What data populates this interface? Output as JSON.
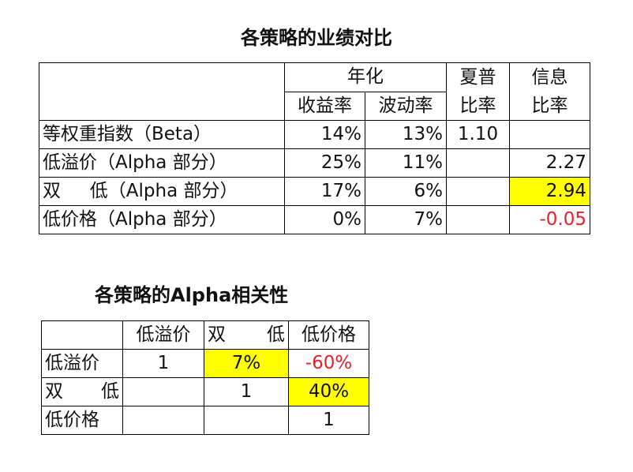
{
  "performance": {
    "title": "各策略的业绩对比",
    "header": {
      "group": "年化",
      "return": "收益率",
      "volatility": "波动率",
      "sharpe_top": "夏普",
      "sharpe_bottom": "比率",
      "info_top": "信息",
      "info_bottom": "比率"
    },
    "rows": [
      {
        "label": "等权重指数（Beta）",
        "return": "14%",
        "volatility": "13%",
        "sharpe": "1.10",
        "info": ""
      },
      {
        "label": "低溢价（Alpha 部分）",
        "return": "25%",
        "volatility": "11%",
        "sharpe": "",
        "info": "2.27"
      },
      {
        "label_a": "双",
        "label_b": "低（Alpha 部分）",
        "return": "17%",
        "volatility": "6%",
        "sharpe": "",
        "info": "2.94"
      },
      {
        "label": "低价格（Alpha 部分）",
        "return": "0%",
        "volatility": "7%",
        "sharpe": "",
        "info": "-0.05"
      }
    ]
  },
  "correlation": {
    "title": "各策略的Alpha相关性",
    "columns": [
      {
        "label": "低溢价"
      },
      {
        "label_a": "双",
        "label_b": "低"
      },
      {
        "label": "低价格"
      }
    ],
    "rows": [
      {
        "label": "低溢价",
        "values": [
          "1",
          "7%",
          "-60%"
        ]
      },
      {
        "label_a": "双",
        "label_b": "低",
        "values": [
          "",
          "1",
          "40%"
        ]
      },
      {
        "label": "低价格",
        "values": [
          "",
          "",
          "1"
        ]
      }
    ]
  },
  "colors": {
    "highlight": "#ffff00",
    "negative": "#e8202a"
  }
}
